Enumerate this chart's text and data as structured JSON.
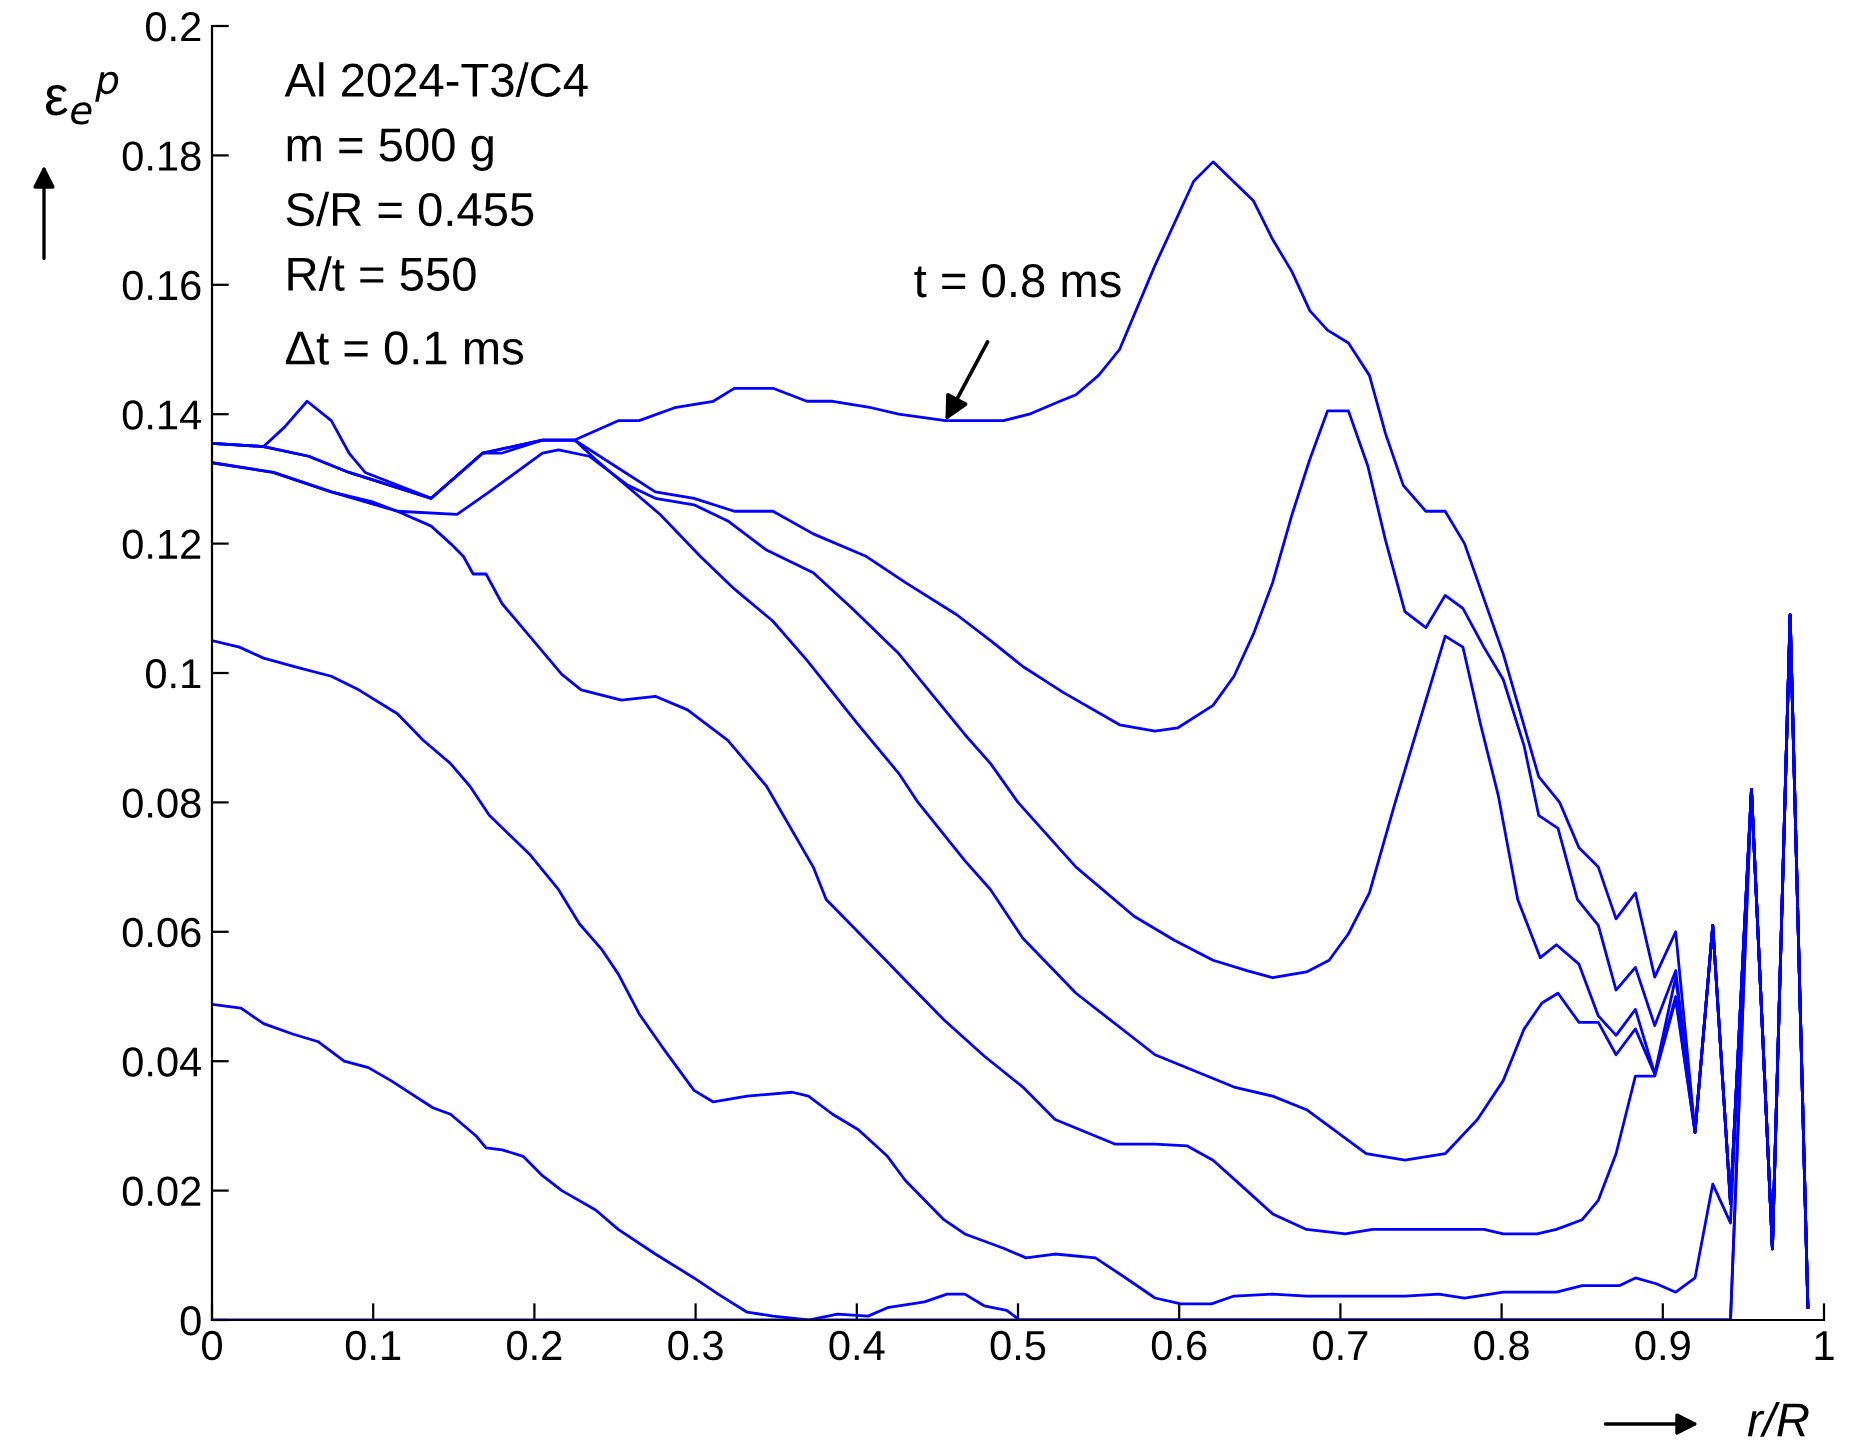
{
  "chart_data": {
    "type": "line",
    "xlabel": "r/R",
    "ylabel": "ε$_{e}$$^{p}$",
    "xlim": [
      0,
      1
    ],
    "ylim": [
      0,
      0.2
    ],
    "xticks": [
      0,
      0.1,
      0.2,
      0.3,
      0.4,
      0.5,
      0.6,
      0.7,
      0.8,
      0.9,
      1
    ],
    "yticks": [
      0,
      0.02,
      0.04,
      0.06,
      0.08,
      0.1,
      0.12,
      0.14,
      0.16,
      0.18,
      0.2
    ],
    "grid": false,
    "legend": false,
    "marker": "none",
    "line_style": "solid",
    "annotations": [
      "Al 2024-T3/C4",
      "m = 500 g",
      "S/R = 0.455",
      "R/t = 550",
      "Δt = 0.1 ms",
      {
        "text": "t = 0.8 ms",
        "x": 0.455,
        "y": 0.139
      }
    ],
    "series": [
      {
        "color": "#0000ff",
        "x": [
          0,
          0.032,
          0.045,
          0.059,
          0.074,
          0.085,
          0.095,
          0.136,
          0.168,
          0.18,
          0.205,
          0.225,
          0.252,
          0.265,
          0.287,
          0.311,
          0.324,
          0.348,
          0.369,
          0.385,
          0.409,
          0.426,
          0.455,
          0.491,
          0.507,
          0.526,
          0.536,
          0.55,
          0.563,
          0.585,
          0.609,
          0.621,
          0.646,
          0.658,
          0.67,
          0.681,
          0.692,
          0.705,
          0.718,
          0.728,
          0.739,
          0.753,
          0.765,
          0.777,
          0.801,
          0.823,
          0.836,
          0.848,
          0.86,
          0.871,
          0.883,
          0.895,
          0.908,
          0.92,
          0.931,
          0.942,
          0.955,
          0.968,
          0.979,
          0.99
        ],
        "values": [
          0.1355,
          0.135,
          0.138,
          0.142,
          0.139,
          0.134,
          0.131,
          0.127,
          0.134,
          0.134,
          0.136,
          0.136,
          0.139,
          0.139,
          0.141,
          0.142,
          0.144,
          0.144,
          0.142,
          0.142,
          0.141,
          0.14,
          0.139,
          0.139,
          0.14,
          0.142,
          0.143,
          0.146,
          0.15,
          0.163,
          0.176,
          0.179,
          0.173,
          0.167,
          0.162,
          0.156,
          0.153,
          0.151,
          0.146,
          0.137,
          0.129,
          0.125,
          0.125,
          0.12,
          0.103,
          0.084,
          0.08,
          0.073,
          0.07,
          0.062,
          0.066,
          0.053,
          0.06,
          0.029,
          0.061,
          0.018,
          0.082,
          0.011,
          0.109,
          0.002
        ]
      },
      {
        "color": "#0000ff",
        "x": [
          0,
          0.032,
          0.06,
          0.085,
          0.136,
          0.168,
          0.205,
          0.225,
          0.25,
          0.275,
          0.299,
          0.324,
          0.348,
          0.373,
          0.406,
          0.43,
          0.462,
          0.483,
          0.503,
          0.528,
          0.563,
          0.585,
          0.599,
          0.621,
          0.634,
          0.646,
          0.658,
          0.67,
          0.681,
          0.692,
          0.705,
          0.717,
          0.728,
          0.74,
          0.753,
          0.765,
          0.776,
          0.789,
          0.801,
          0.814,
          0.823,
          0.835,
          0.847,
          0.86,
          0.871,
          0.883,
          0.895,
          0.908,
          0.92,
          0.931,
          0.942,
          0.955,
          0.968,
          0.979,
          0.99
        ],
        "values": [
          0.1355,
          0.135,
          0.1335,
          0.131,
          0.127,
          0.134,
          0.136,
          0.136,
          0.132,
          0.128,
          0.127,
          0.125,
          0.125,
          0.1215,
          0.118,
          0.114,
          0.109,
          0.105,
          0.101,
          0.097,
          0.092,
          0.091,
          0.0915,
          0.095,
          0.0995,
          0.106,
          0.114,
          0.1245,
          0.133,
          0.1405,
          0.1405,
          0.132,
          0.1205,
          0.1095,
          0.107,
          0.112,
          0.11,
          0.104,
          0.099,
          0.0887,
          0.078,
          0.076,
          0.065,
          0.061,
          0.051,
          0.0545,
          0.0455,
          0.054,
          0.029,
          0.061,
          0.018,
          0.082,
          0.011,
          0.109,
          0.002
        ]
      },
      {
        "color": "#0000ff",
        "x": [
          0,
          0.038,
          0.074,
          0.115,
          0.152,
          0.172,
          0.205,
          0.215,
          0.234,
          0.258,
          0.275,
          0.299,
          0.32,
          0.344,
          0.373,
          0.397,
          0.426,
          0.467,
          0.483,
          0.5,
          0.536,
          0.572,
          0.597,
          0.621,
          0.642,
          0.658,
          0.679,
          0.693,
          0.705,
          0.718,
          0.734,
          0.765,
          0.776,
          0.787,
          0.798,
          0.81,
          0.824,
          0.834,
          0.848,
          0.86,
          0.871,
          0.883,
          0.895,
          0.908,
          0.92,
          0.931,
          0.942,
          0.955,
          0.968,
          0.979,
          0.99
        ],
        "values": [
          0.1325,
          0.131,
          0.128,
          0.125,
          0.1245,
          0.128,
          0.134,
          0.1345,
          0.1335,
          0.129,
          0.127,
          0.126,
          0.1235,
          0.119,
          0.1155,
          0.11,
          0.103,
          0.0905,
          0.086,
          0.08,
          0.07,
          0.0624,
          0.0587,
          0.0556,
          0.054,
          0.0529,
          0.0538,
          0.0556,
          0.0597,
          0.066,
          0.08,
          0.1057,
          0.104,
          0.092,
          0.081,
          0.065,
          0.056,
          0.058,
          0.055,
          0.047,
          0.044,
          0.048,
          0.038,
          0.053,
          0.029,
          0.061,
          0.018,
          0.082,
          0.011,
          0.109,
          0.002
        ]
      },
      {
        "color": "#0000ff",
        "x": [
          0,
          0.032,
          0.06,
          0.085,
          0.136,
          0.168,
          0.205,
          0.225,
          0.238,
          0.278,
          0.303,
          0.324,
          0.348,
          0.369,
          0.401,
          0.426,
          0.438,
          0.467,
          0.483,
          0.503,
          0.536,
          0.585,
          0.634,
          0.658,
          0.679,
          0.716,
          0.74,
          0.765,
          0.785,
          0.801,
          0.814,
          0.825,
          0.835,
          0.848,
          0.86,
          0.871,
          0.883,
          0.895,
          0.908,
          0.92,
          0.931,
          0.942,
          0.955,
          0.968,
          0.979,
          0.99
        ],
        "values": [
          0.1355,
          0.135,
          0.1335,
          0.131,
          0.127,
          0.134,
          0.136,
          0.136,
          0.133,
          0.1245,
          0.118,
          0.113,
          0.108,
          0.102,
          0.092,
          0.0845,
          0.08,
          0.071,
          0.0665,
          0.059,
          0.0505,
          0.041,
          0.036,
          0.0346,
          0.0325,
          0.0257,
          0.0247,
          0.0257,
          0.031,
          0.037,
          0.045,
          0.049,
          0.0505,
          0.046,
          0.046,
          0.041,
          0.045,
          0.038,
          0.05,
          0.029,
          0.061,
          0.018,
          0.082,
          0.011,
          0.109,
          0.002
        ]
      },
      {
        "color": "#0000ff",
        "x": [
          0,
          0.038,
          0.074,
          0.099,
          0.115,
          0.136,
          0.148,
          0.156,
          0.162,
          0.17,
          0.18,
          0.197,
          0.217,
          0.229,
          0.254,
          0.275,
          0.295,
          0.32,
          0.344,
          0.373,
          0.381,
          0.418,
          0.43,
          0.454,
          0.479,
          0.503,
          0.523,
          0.56,
          0.585,
          0.605,
          0.621,
          0.642,
          0.658,
          0.679,
          0.703,
          0.72,
          0.789,
          0.801,
          0.822,
          0.834,
          0.85,
          0.86,
          0.871,
          0.883,
          0.895,
          0.908,
          0.92,
          0.931,
          0.942,
          0.955,
          0.968,
          0.979,
          0.99
        ],
        "values": [
          0.1325,
          0.131,
          0.128,
          0.1265,
          0.125,
          0.1227,
          0.12,
          0.118,
          0.1153,
          0.1153,
          0.1107,
          0.1057,
          0.0998,
          0.0974,
          0.0958,
          0.0964,
          0.0943,
          0.0896,
          0.0825,
          0.07,
          0.065,
          0.0556,
          0.0525,
          0.0464,
          0.0408,
          0.036,
          0.031,
          0.0272,
          0.0272,
          0.0269,
          0.0247,
          0.02,
          0.0164,
          0.014,
          0.0133,
          0.014,
          0.014,
          0.0133,
          0.0133,
          0.014,
          0.0155,
          0.0185,
          0.0257,
          0.0377,
          0.0377,
          0.0495,
          0.029,
          0.061,
          0.018,
          0.082,
          0.011,
          0.109,
          0.002
        ]
      },
      {
        "color": "#0000ff",
        "x": [
          0,
          0.017,
          0.032,
          0.054,
          0.074,
          0.091,
          0.115,
          0.131,
          0.148,
          0.16,
          0.172,
          0.197,
          0.215,
          0.228,
          0.242,
          0.252,
          0.265,
          0.279,
          0.299,
          0.311,
          0.332,
          0.36,
          0.37,
          0.385,
          0.401,
          0.419,
          0.43,
          0.454,
          0.467,
          0.491,
          0.505,
          0.523,
          0.548,
          0.565,
          0.585,
          0.601,
          0.62,
          0.634,
          0.658,
          0.679,
          0.74,
          0.761,
          0.777,
          0.801,
          0.834,
          0.85,
          0.873,
          0.883,
          0.896,
          0.908,
          0.92,
          0.931,
          0.942,
          0.955,
          0.968,
          0.979,
          0.99
        ],
        "values": [
          0.105,
          0.104,
          0.1023,
          0.1008,
          0.0995,
          0.0974,
          0.0937,
          0.0896,
          0.086,
          0.0825,
          0.078,
          0.072,
          0.0665,
          0.0612,
          0.0572,
          0.0535,
          0.0473,
          0.0423,
          0.0355,
          0.0337,
          0.0346,
          0.0352,
          0.0346,
          0.0318,
          0.0294,
          0.0253,
          0.0216,
          0.0155,
          0.0133,
          0.0111,
          0.0096,
          0.0102,
          0.0096,
          0.0068,
          0.0034,
          0.0025,
          0.0025,
          0.0037,
          0.004,
          0.0037,
          0.0037,
          0.004,
          0.0034,
          0.0043,
          0.0043,
          0.0053,
          0.0053,
          0.0065,
          0.0056,
          0.0043,
          0.0065,
          0.021,
          0.015,
          0.082,
          0.011,
          0.109,
          0.002
        ]
      },
      {
        "color": "#0000ff",
        "x": [
          0,
          0.018,
          0.032,
          0.05,
          0.066,
          0.082,
          0.097,
          0.111,
          0.137,
          0.148,
          0.164,
          0.17,
          0.18,
          0.193,
          0.205,
          0.217,
          0.238,
          0.252,
          0.275,
          0.299,
          0.314,
          0.332,
          0.348,
          0.37,
          0.388,
          0.407,
          0.419,
          0.442,
          0.456,
          0.467,
          0.479,
          0.493,
          0.501,
          0.942,
          0.955,
          0.968,
          0.979,
          0.99
        ],
        "values": [
          0.0488,
          0.0482,
          0.0458,
          0.0442,
          0.043,
          0.04,
          0.039,
          0.037,
          0.0328,
          0.0318,
          0.0284,
          0.0266,
          0.0263,
          0.0253,
          0.0223,
          0.02,
          0.017,
          0.014,
          0.0102,
          0.0065,
          0.004,
          0.0012,
          0.0006,
          0,
          0.0009,
          0.0006,
          0.0019,
          0.0028,
          0.004,
          0.004,
          0.0022,
          0.0015,
          0,
          0,
          0.082,
          0.011,
          0.109,
          0.002
        ]
      },
      {
        "color": "#0000ff",
        "x": [
          0,
          0.942,
          0.955,
          0.968,
          0.979,
          0.99
        ],
        "values": [
          0,
          0,
          0.082,
          0.011,
          0.109,
          0.002
        ]
      }
    ]
  }
}
